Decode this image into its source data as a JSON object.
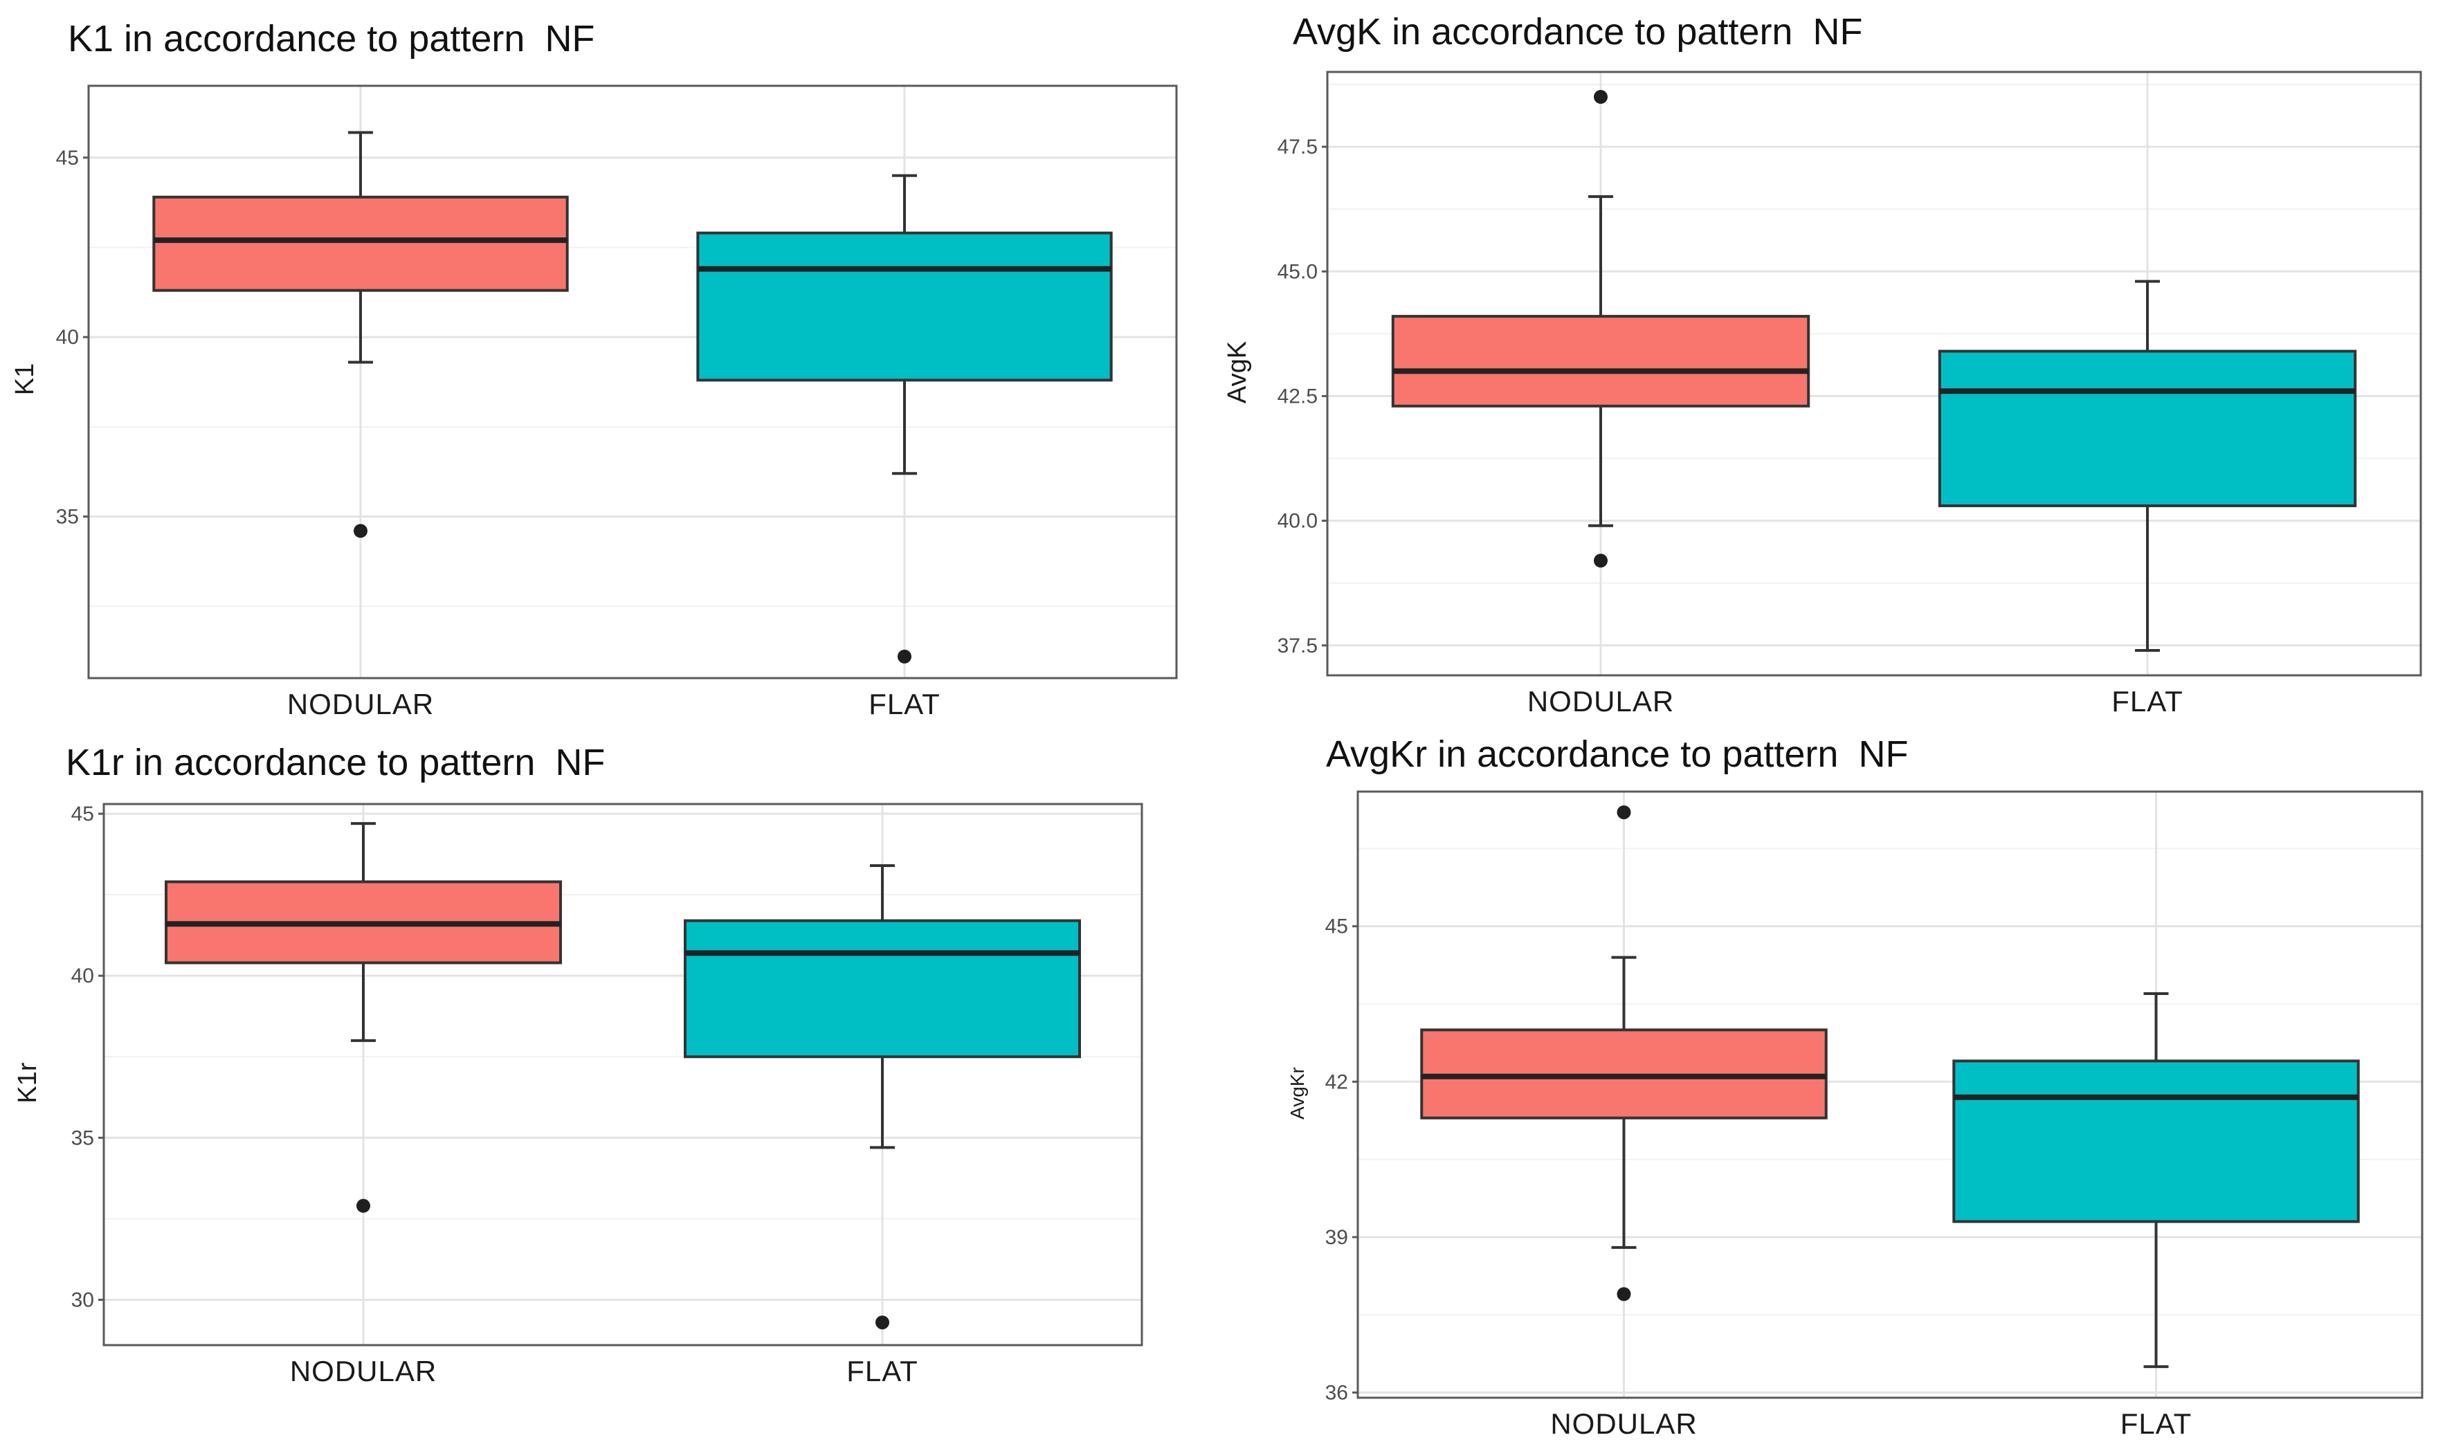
{
  "colors": {
    "nodular": "#F8766D",
    "flat": "#00BFC4"
  },
  "chart_data": [
    {
      "type": "box",
      "title": "K1 in accordance to pattern",
      "title_suffix": "NF",
      "xlabel": "",
      "ylabel": "K1",
      "categories": [
        "NODULAR",
        "FLAT"
      ],
      "ylim": [
        30.5,
        47
      ],
      "yticks": [
        35,
        40,
        45
      ],
      "ytick_labels": [
        "35",
        "40",
        "45"
      ],
      "boxes": [
        {
          "name": "NODULAR",
          "whisker_low": 39.3,
          "q1": 41.3,
          "median": 42.7,
          "q3": 43.9,
          "whisker_high": 45.7,
          "outliers": [
            34.6
          ]
        },
        {
          "name": "FLAT",
          "whisker_low": 36.2,
          "q1": 38.8,
          "median": 41.9,
          "q3": 42.9,
          "whisker_high": 44.5,
          "outliers": [
            31.1
          ]
        }
      ]
    },
    {
      "type": "box",
      "title": "AvgK in accordance to pattern",
      "title_suffix": "NF",
      "xlabel": "",
      "ylabel": "AvgK",
      "categories": [
        "NODULAR",
        "FLAT"
      ],
      "ylim": [
        36.9,
        49
      ],
      "yticks": [
        37.5,
        40.0,
        42.5,
        45.0,
        47.5
      ],
      "ytick_labels": [
        "37.5",
        "40.0",
        "42.5",
        "45.0",
        "47.5"
      ],
      "boxes": [
        {
          "name": "NODULAR",
          "whisker_low": 39.9,
          "q1": 42.3,
          "median": 43.0,
          "q3": 44.1,
          "whisker_high": 46.5,
          "outliers": [
            39.2,
            48.5
          ]
        },
        {
          "name": "FLAT",
          "whisker_low": 37.4,
          "q1": 40.3,
          "median": 42.6,
          "q3": 43.4,
          "whisker_high": 44.8,
          "outliers": []
        }
      ]
    },
    {
      "type": "box",
      "title": "K1r in accordance to pattern",
      "title_suffix": "NF",
      "xlabel": "",
      "ylabel": "K1r",
      "categories": [
        "NODULAR",
        "FLAT"
      ],
      "ylim": [
        28.6,
        45.3
      ],
      "yticks": [
        30,
        35,
        40,
        45
      ],
      "ytick_labels": [
        "30",
        "35",
        "40",
        "45"
      ],
      "boxes": [
        {
          "name": "NODULAR",
          "whisker_low": 38.0,
          "q1": 40.4,
          "median": 41.6,
          "q3": 42.9,
          "whisker_high": 44.7,
          "outliers": [
            32.9
          ]
        },
        {
          "name": "FLAT",
          "whisker_low": 34.7,
          "q1": 37.5,
          "median": 40.7,
          "q3": 41.7,
          "whisker_high": 43.4,
          "outliers": [
            29.3
          ]
        }
      ]
    },
    {
      "type": "box",
      "title": "AvgKr in accordance to pattern",
      "title_suffix": "NF",
      "xlabel": "",
      "ylabel": "AvgKr",
      "categories": [
        "NODULAR",
        "FLAT"
      ],
      "ylim": [
        35.9,
        47.6
      ],
      "yticks": [
        36,
        39,
        42,
        45
      ],
      "ytick_labels": [
        "36",
        "39",
        "42",
        "45"
      ],
      "boxes": [
        {
          "name": "NODULAR",
          "whisker_low": 38.8,
          "q1": 41.3,
          "median": 42.1,
          "q3": 43.0,
          "whisker_high": 44.4,
          "outliers": [
            37.9,
            47.2
          ]
        },
        {
          "name": "FLAT",
          "whisker_low": 36.5,
          "q1": 39.3,
          "median": 41.7,
          "q3": 42.4,
          "whisker_high": 43.7,
          "outliers": []
        }
      ]
    }
  ]
}
